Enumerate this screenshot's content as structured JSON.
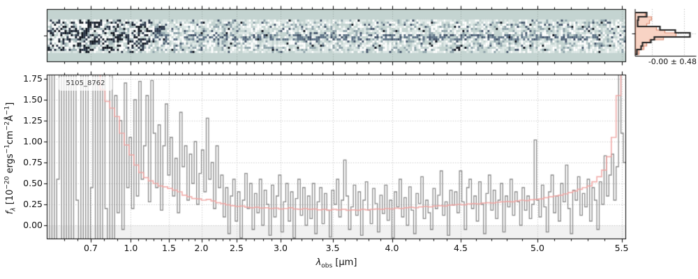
{
  "chart_data": {
    "type": "line",
    "spectrum_2d": {
      "description": "2D spectrum strip, noisy pixels over teal background with faint central trace",
      "bg": "#c4d4d1",
      "seed": 11,
      "palette": {
        "white": "#ffffff",
        "light": "#dfe9e7",
        "mid": "#9db0b4",
        "slate": "#8fa3ab",
        "dark": "#46566c",
        "black": "#10151f",
        "black2": "#2a3547",
        "trace": "#5d7186",
        "trace_dark": "#3f4f66",
        "streak": "#273246"
      },
      "grid_color": "rgba(105,115,112,0.5)"
    },
    "histogram": {
      "stats_label": "-0.00 ± 0.48",
      "fill": "#f8d3c4",
      "edge": "#dd8a70",
      "line": "#222222",
      "grid_color": "#aaaaaa",
      "rows": [
        [
          5,
          11,
          16,
          14
        ],
        [
          11,
          16,
          4,
          23
        ],
        [
          16,
          21,
          3,
          20
        ],
        [
          21,
          25,
          3,
          16
        ],
        [
          25,
          30,
          35,
          30
        ],
        [
          30,
          34,
          57,
          42
        ],
        [
          34,
          40,
          78,
          58
        ],
        [
          40,
          44,
          27,
          40
        ],
        [
          44,
          48,
          22,
          20
        ],
        [
          48,
          53,
          10,
          16
        ],
        [
          53,
          58,
          8,
          12
        ],
        [
          58,
          65,
          2,
          5
        ]
      ],
      "grid_x": [
        23,
        69
      ],
      "mid_y": 35
    },
    "spectrum_1d": {
      "annotation": "5105_8762",
      "ylim": [
        -0.1667,
        1.8
      ],
      "yticks": [
        0.0,
        0.25,
        0.5,
        0.75,
        1.0,
        1.25,
        1.5,
        1.75
      ],
      "ytick_labels": [
        "0.00",
        "0.25",
        "0.50",
        "0.75",
        "1.00",
        "1.25",
        "1.50",
        "1.75"
      ],
      "wavelength_ticks": {
        "labels": [
          "0.7",
          "1.0",
          "1.5",
          "2.0",
          "2.5",
          "3.0",
          "3.5",
          "4.0",
          "4.5",
          "5.0",
          "5.5"
        ],
        "values": [
          0.7,
          1.0,
          1.5,
          2.0,
          2.5,
          3.0,
          3.5,
          4.0,
          4.5,
          5.0,
          5.5
        ],
        "frac": [
          0.0754,
          0.1447,
          0.2105,
          0.2666,
          0.3275,
          0.4035,
          0.4934,
          0.5959,
          0.7147,
          0.8474,
          0.9928
        ]
      },
      "xlabel_parts": {
        "p1": "λ",
        "p2": "obs",
        "p3": " [μm]"
      },
      "ylabel_parts": {
        "p1": "f",
        "p2": "λ",
        "p3": " [10",
        "p4": "−20",
        "p5": " ergs",
        "p6": "−1",
        "p7": "cm",
        "p8": "−2",
        "p9": "Å",
        "p10": "−1",
        "p11": "]"
      },
      "grid_color": "#bcbcbc",
      "below_zero_band_color": "#f1f1f1",
      "series": [
        {
          "name": "observed-spectrum",
          "color": "#8a8a8a",
          "alpha": 1.0,
          "lw": 1.3,
          "values": [
            2.4,
            -1.8,
            2.6,
            -1.2,
            0.55,
            2.8,
            -2.0,
            1.9,
            -0.9,
            2.5,
            -1.5,
            2.2,
            0.3,
            -1.7,
            2.7,
            -1.1,
            2.3,
            -1.9,
            0.45,
            2.6,
            -1.3,
            2.1,
            -1.6,
            2.4,
            0.2,
            -1.4,
            2.5,
            -1.0,
            1.55,
            0.15,
            1.25,
            -0.05,
            1.7,
            0.45,
            1.05,
            0.2,
            1.5,
            0.35,
            1.72,
            0.55,
            0.95,
            1.55,
            0.28,
            1.73,
            1.1,
            0.45,
            1.2,
            0.18,
            0.95,
            1.45,
            0.6,
            1.05,
            0.35,
            0.8,
            0.15,
            1.35,
            0.7,
            0.95,
            0.3,
            0.85,
            0.5,
            1.0,
            0.25,
            0.62,
            0.9,
            0.4,
            1.28,
            0.55,
            0.75,
            0.2,
            0.95,
            0.45,
            0.6,
            0.1,
            0.45,
            -0.1,
            0.35,
            0.55,
            0.05,
            0.4,
            -0.15,
            0.3,
            0.62,
            0.2,
            0.5,
            -0.05,
            0.38,
            0.15,
            0.55,
            0.0,
            0.42,
            0.25,
            -0.12,
            0.48,
            0.1,
            0.35,
            0.6,
            -0.08,
            0.28,
            0.5,
            0.05,
            0.4,
            -0.15,
            0.32,
            0.55,
            0.12,
            0.45,
            0.0,
            0.35,
            0.08,
            0.5,
            -0.1,
            0.28,
            0.45,
            0.02,
            0.38,
            0.18,
            -0.14,
            0.42,
            0.25,
            0.55,
            0.1,
            0.3,
            0.78,
            0.35,
            -0.05,
            0.22,
            0.48,
            0.12,
            0.4,
            -0.12,
            0.3,
            0.52,
            0.18,
            0.02,
            0.44,
            0.26,
            -0.08,
            0.36,
            0.14,
            0.48,
            0.06,
            0.3,
            -0.15,
            0.4,
            0.22,
            0.55,
            0.1,
            0.33,
            0.0,
            0.46,
            0.18,
            -0.1,
            0.38,
            0.26,
            0.58,
            0.08,
            0.3,
            0.15,
            -0.05,
            0.44,
            0.2,
            0.36,
            0.65,
            0.12,
            0.28,
            -0.12,
            0.42,
            0.24,
            0.4,
            0.15,
            0.65,
            0.28,
            -0.05,
            0.45,
            0.55,
            0.2,
            0.35,
            0.05,
            0.52,
            0.25,
            -0.1,
            0.38,
            0.6,
            0.18,
            0.42,
            0.08,
            0.3,
            0.5,
            -0.08,
            0.35,
            0.22,
            0.55,
            0.12,
            0.4,
            0.28,
            0.0,
            0.45,
            0.18,
            0.35,
            0.08,
            0.25,
            1.02,
            0.3,
            0.1,
            0.48,
            0.22,
            -0.08,
            0.4,
            0.6,
            0.15,
            0.35,
            0.05,
            0.5,
            0.28,
            0.72,
            0.2,
            -0.1,
            0.42,
            0.3,
            0.58,
            0.12,
            0.38,
            0.22,
            0.55,
            0.05,
            0.45,
            0.3,
            -0.05,
            0.52,
            0.25,
            0.83,
            0.35,
            0.6,
            0.85,
            0.3,
            0.7,
            1.95,
            1.1,
            0.75
          ]
        },
        {
          "name": "uncertainty",
          "color": "#f0a2a0",
          "alpha": 0.85,
          "lw": 1.7,
          "values": [
            2.3,
            2.3,
            2.3,
            2.3,
            2.3,
            2.3,
            2.3,
            2.3,
            2.3,
            2.3,
            2.0,
            1.62,
            1.48,
            1.4,
            1.3,
            1.1,
            0.96,
            0.84,
            0.72,
            0.63,
            0.57,
            0.53,
            0.5,
            0.47,
            0.46,
            0.44,
            0.42,
            0.4,
            0.36,
            0.34,
            0.32,
            0.315,
            0.3,
            0.31,
            0.29,
            0.27,
            0.26,
            0.245,
            0.235,
            0.225,
            0.23,
            0.215,
            0.21,
            0.215,
            0.205,
            0.21,
            0.2,
            0.205,
            0.195,
            0.2,
            0.21,
            0.195,
            0.19,
            0.2,
            0.19,
            0.195,
            0.185,
            0.19,
            0.18,
            0.19,
            0.185,
            0.19,
            0.18,
            0.185,
            0.18,
            0.19,
            0.185,
            0.19,
            0.195,
            0.19,
            0.2,
            0.195,
            0.205,
            0.2,
            0.21,
            0.215,
            0.21,
            0.22,
            0.225,
            0.22,
            0.23,
            0.235,
            0.23,
            0.24,
            0.245,
            0.25,
            0.245,
            0.255,
            0.26,
            0.255,
            0.265,
            0.27,
            0.265,
            0.275,
            0.28,
            0.285,
            0.28,
            0.29,
            0.3,
            0.295,
            0.305,
            0.31,
            0.315,
            0.33,
            0.34,
            0.35,
            0.36,
            0.375,
            0.39,
            0.41,
            0.43,
            0.45,
            0.47,
            0.52,
            0.58,
            0.66,
            0.82,
            1.05,
            1.55,
            2.1
          ]
        }
      ]
    }
  }
}
